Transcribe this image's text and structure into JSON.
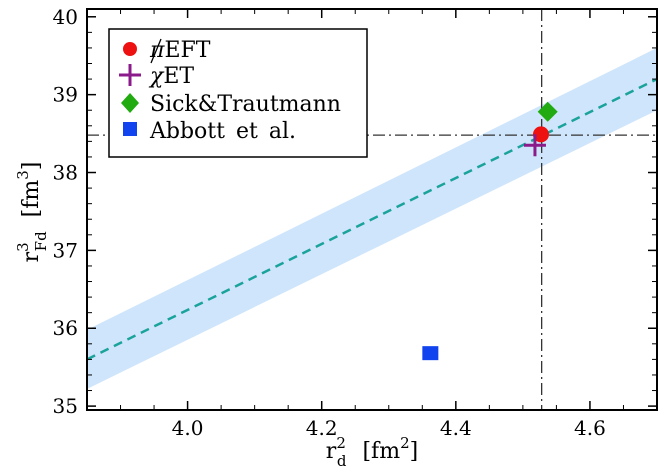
{
  "chart_data": {
    "type": "scatter",
    "title": "",
    "xlabel": {
      "base": "r",
      "sup": "2",
      "sub": "d",
      "unit": "[fm",
      "unit_sup": "2",
      "unit_close": "]"
    },
    "ylabel": {
      "base": "r",
      "sup": "3",
      "sub": "Fd",
      "unit": "[fm",
      "unit_sup": "3",
      "unit_close": "]"
    },
    "xlim": [
      3.85,
      4.7
    ],
    "ylim": [
      34.95,
      40.1
    ],
    "xticks": [
      4.0,
      4.2,
      4.4,
      4.6
    ],
    "xtick_labels": [
      "4.0",
      "4.2",
      "4.4",
      "4.6"
    ],
    "yticks": [
      35,
      36,
      37,
      38,
      39,
      40
    ],
    "ytick_labels": [
      "35",
      "36",
      "37",
      "38",
      "39",
      "40"
    ],
    "grid": false,
    "legend_position": "top-left",
    "band": {
      "color": "#cfe5fb",
      "x": [
        3.85,
        4.7
      ],
      "lower": [
        35.22,
        38.8
      ],
      "upper": [
        35.98,
        39.6
      ]
    },
    "fit_line": {
      "color": "#1aa39b",
      "style": "dashed",
      "x": [
        3.85,
        4.7
      ],
      "y": [
        35.6,
        39.2
      ]
    },
    "reference_lines": {
      "x": 4.528,
      "y": 38.48,
      "style": "dash-dot",
      "color": "#333333"
    },
    "series": [
      {
        "name": "πEFT",
        "legend_prefix": "π",
        "legend_suffix": "EFT",
        "marker": "circle",
        "color": "#ee1111",
        "points": [
          [
            4.527,
            38.49
          ]
        ]
      },
      {
        "name": "χET",
        "legend_prefix": "χ",
        "legend_suffix": "ET",
        "marker": "plus",
        "color": "#8b1a8b",
        "points": [
          [
            4.518,
            38.35
          ]
        ]
      },
      {
        "name": "Sick&Trautmann",
        "marker": "diamond",
        "color": "#22aa11",
        "points": [
          [
            4.537,
            38.78
          ]
        ]
      },
      {
        "name": "Abbott et al.",
        "marker": "square",
        "color": "#1144ee",
        "points": [
          [
            4.362,
            35.68
          ]
        ]
      }
    ]
  }
}
